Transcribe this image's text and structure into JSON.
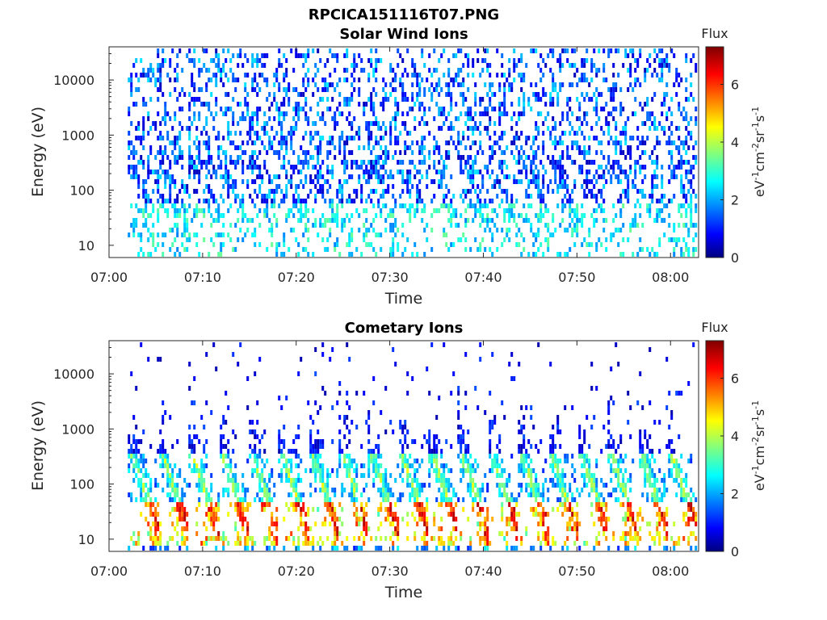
{
  "figure_title": "RPCICA151116T07.PNG",
  "colors": {
    "colormap": "jet",
    "axes": "#262626",
    "background": "#ffffff"
  },
  "chart_data": [
    {
      "type": "heatmap",
      "title": "Solar Wind Ions",
      "xlabel": "Time",
      "ylabel": "Energy (eV)",
      "x_ticks": [
        "07:00",
        "07:10",
        "07:20",
        "07:30",
        "07:40",
        "07:50",
        "08:00"
      ],
      "y_ticks": [
        "10",
        "100",
        "1000",
        "10000"
      ],
      "y_scale": "log",
      "ylim": [
        6,
        40000
      ],
      "xlim": [
        "07:00",
        "08:03"
      ],
      "data_start": "07:02",
      "pulse_period_min": 3.2,
      "colorbar": {
        "label_top": "Flux",
        "units": "eV-1cm-2sr-1s-1",
        "ticks": [
          "0",
          "2",
          "4",
          "6"
        ],
        "range": [
          0,
          7.3
        ]
      },
      "peak_flux": 3.5,
      "grid": false
    },
    {
      "type": "heatmap",
      "title": "Cometary Ions",
      "xlabel": "Time",
      "ylabel": "Energy (eV)",
      "x_ticks": [
        "07:00",
        "07:10",
        "07:20",
        "07:30",
        "07:40",
        "07:50",
        "08:00"
      ],
      "y_ticks": [
        "10",
        "100",
        "1000",
        "10000"
      ],
      "y_scale": "log",
      "ylim": [
        6,
        40000
      ],
      "xlim": [
        "07:00",
        "08:03"
      ],
      "data_start": "07:02",
      "pulse_period_min": 3.2,
      "colorbar": {
        "label_top": "Flux",
        "units": "eV-1cm-2sr-1s-1",
        "ticks": [
          "0",
          "2",
          "4",
          "6"
        ],
        "range": [
          0,
          7.3
        ]
      },
      "peak_flux": 6.5,
      "grid": false
    }
  ]
}
